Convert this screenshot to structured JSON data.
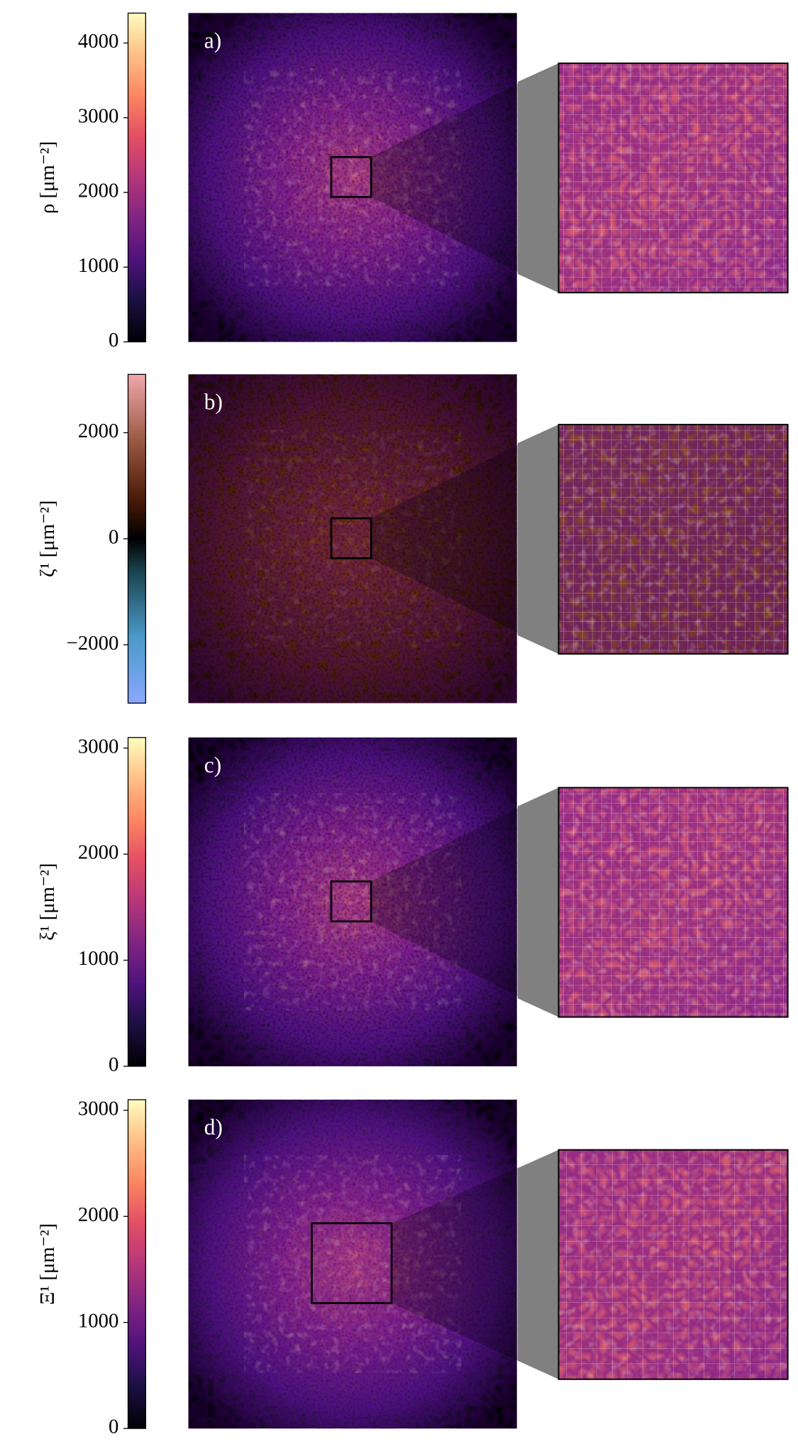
{
  "chart_data": [
    {
      "type": "heatmap",
      "panel_label": "a)",
      "colorbar_label": "ρ [μm⁻²]",
      "colormap": "magma",
      "ylim": [
        0,
        4400
      ],
      "yticks": [
        0,
        1000,
        2000,
        3000,
        4000
      ]
    },
    {
      "type": "heatmap",
      "panel_label": "b)",
      "colorbar_label": "ζ¹ [μm⁻²]",
      "colormap": "diverging",
      "ylim": [
        -3100,
        3100
      ],
      "yticks": [
        {
          "value": -2000,
          "label": "−2000"
        },
        0,
        2000
      ]
    },
    {
      "type": "heatmap",
      "panel_label": "c)",
      "colorbar_label": "ξ¹ [μm⁻²]",
      "colormap": "magma",
      "ylim": [
        0,
        3100
      ],
      "yticks": [
        0,
        1000,
        2000,
        3000
      ]
    },
    {
      "type": "heatmap",
      "panel_label": "d)",
      "colorbar_label": "Ξ¹ [μm⁻²]",
      "colormap": "magma",
      "ylim": [
        0,
        3100
      ],
      "yticks": [
        0,
        1000,
        2000,
        3000
      ]
    }
  ]
}
